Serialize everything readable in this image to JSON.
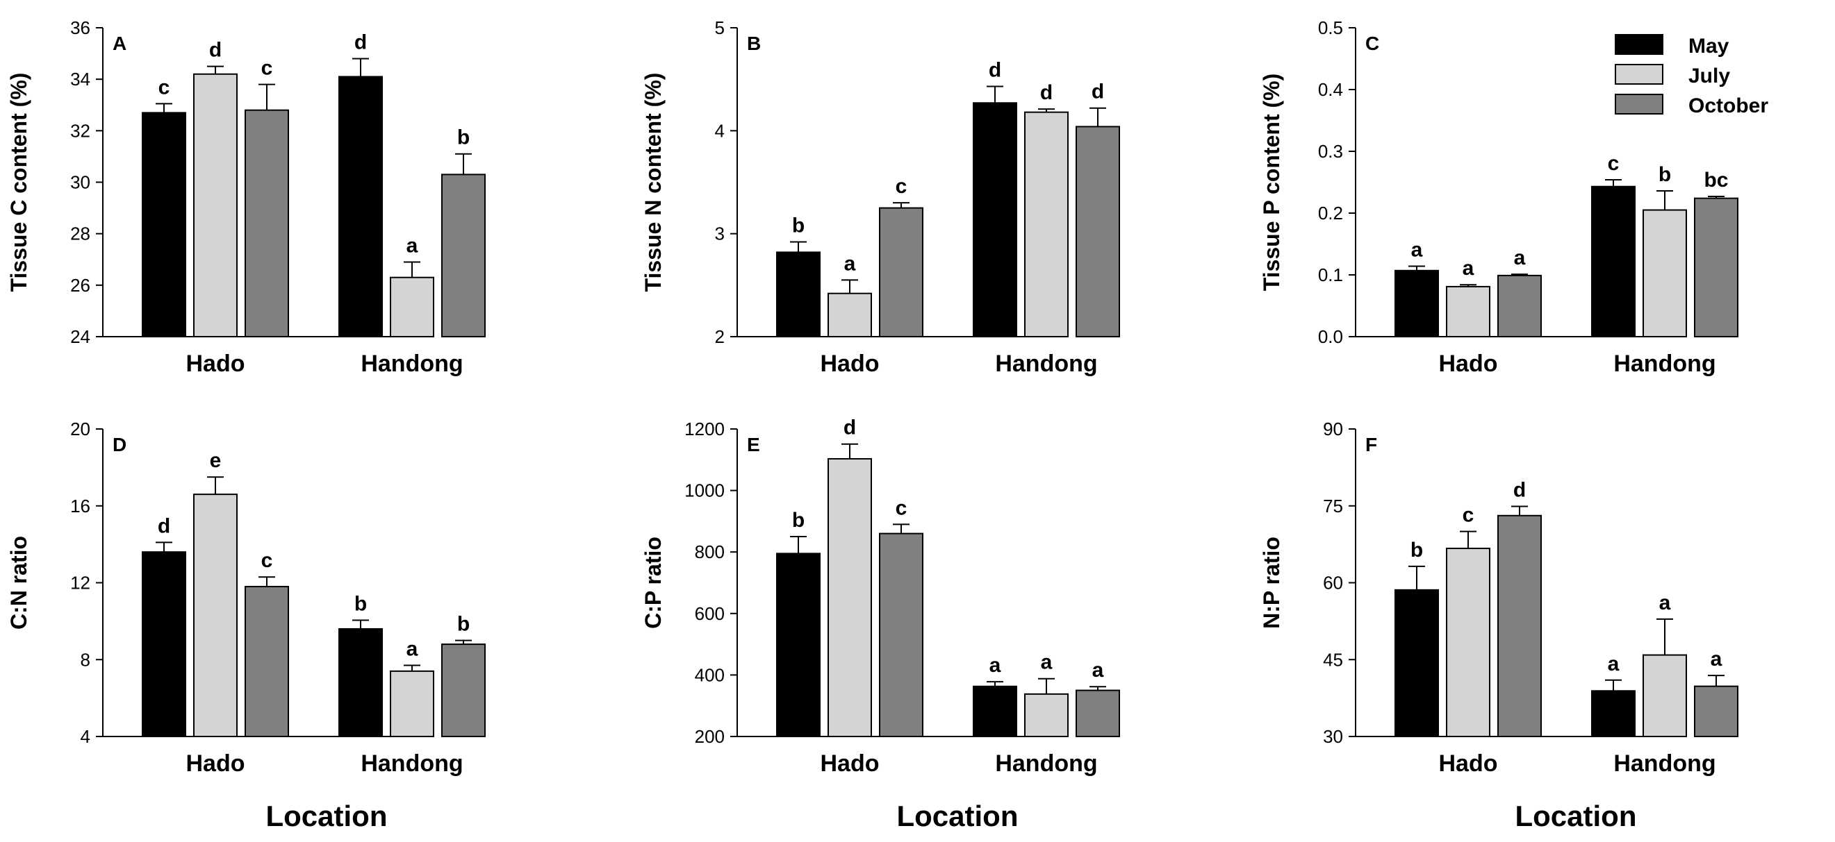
{
  "figure": {
    "x_title": "Location",
    "legend": [
      {
        "name": "May",
        "color": "#000000"
      },
      {
        "name": "July",
        "color": "#d4d4d4"
      },
      {
        "name": "October",
        "color": "#808080"
      }
    ]
  },
  "chart_data": [
    {
      "type": "bar",
      "panel": "A",
      "ylabel": "Tissue C content (%)",
      "categories": [
        "Hado",
        "Handong"
      ],
      "ylim": [
        24,
        36
      ],
      "yticks": [
        24,
        26,
        28,
        30,
        32,
        34,
        36
      ],
      "tick_decimals": 0,
      "series": [
        {
          "name": "May",
          "values": [
            32.7,
            34.1
          ],
          "errors": [
            0.35,
            0.7
          ],
          "letters": [
            "c",
            "d"
          ]
        },
        {
          "name": "July",
          "values": [
            34.2,
            26.3
          ],
          "errors": [
            0.3,
            0.6
          ],
          "letters": [
            "d",
            "a"
          ]
        },
        {
          "name": "October",
          "values": [
            32.8,
            30.3
          ],
          "errors": [
            1.0,
            0.8
          ],
          "letters": [
            "c",
            "b"
          ]
        }
      ]
    },
    {
      "type": "bar",
      "panel": "B",
      "ylabel": "Tissue N content (%)",
      "categories": [
        "Hado",
        "Handong"
      ],
      "ylim": [
        2,
        5
      ],
      "yticks": [
        2,
        3,
        4,
        5
      ],
      "tick_decimals": 0,
      "series": [
        {
          "name": "May",
          "values": [
            2.82,
            4.27
          ],
          "errors": [
            0.1,
            0.16
          ],
          "letters": [
            "b",
            "d"
          ]
        },
        {
          "name": "July",
          "values": [
            2.42,
            4.18
          ],
          "errors": [
            0.13,
            0.03
          ],
          "letters": [
            "a",
            "d"
          ]
        },
        {
          "name": "October",
          "values": [
            3.25,
            4.04
          ],
          "errors": [
            0.05,
            0.18
          ],
          "letters": [
            "c",
            "d"
          ]
        }
      ]
    },
    {
      "type": "bar",
      "panel": "C",
      "ylabel": "Tissue P content (%)",
      "categories": [
        "Hado",
        "Handong"
      ],
      "ylim": [
        0,
        0.5
      ],
      "yticks": [
        0,
        0.1,
        0.2,
        0.3,
        0.4,
        0.5
      ],
      "tick_decimals": 1,
      "series": [
        {
          "name": "May",
          "values": [
            0.107,
            0.243
          ],
          "errors": [
            0.007,
            0.011
          ],
          "letters": [
            "a",
            "c"
          ]
        },
        {
          "name": "July",
          "values": [
            0.081,
            0.205
          ],
          "errors": [
            0.003,
            0.031
          ],
          "letters": [
            "a",
            "b"
          ]
        },
        {
          "name": "October",
          "values": [
            0.099,
            0.224
          ],
          "errors": [
            0.002,
            0.003
          ],
          "letters": [
            "a",
            "bc"
          ]
        }
      ]
    },
    {
      "type": "bar",
      "panel": "D",
      "ylabel": "C:N ratio",
      "categories": [
        "Hado",
        "Handong"
      ],
      "ylim": [
        4,
        20
      ],
      "yticks": [
        4,
        8,
        12,
        16,
        20
      ],
      "tick_decimals": 0,
      "series": [
        {
          "name": "May",
          "values": [
            13.6,
            9.6
          ],
          "errors": [
            0.5,
            0.45
          ],
          "letters": [
            "d",
            "b"
          ]
        },
        {
          "name": "July",
          "values": [
            16.6,
            7.4
          ],
          "errors": [
            0.9,
            0.3
          ],
          "letters": [
            "e",
            "a"
          ]
        },
        {
          "name": "October",
          "values": [
            11.8,
            8.8
          ],
          "errors": [
            0.5,
            0.2
          ],
          "letters": [
            "c",
            "b"
          ]
        }
      ]
    },
    {
      "type": "bar",
      "panel": "E",
      "ylabel": "C:P ratio",
      "categories": [
        "Hado",
        "Handong"
      ],
      "ylim": [
        200,
        1200
      ],
      "yticks": [
        200,
        400,
        600,
        800,
        1000,
        1200
      ],
      "tick_decimals": 0,
      "series": [
        {
          "name": "May",
          "values": [
            795,
            363
          ],
          "errors": [
            55,
            15
          ],
          "letters": [
            "b",
            "a"
          ]
        },
        {
          "name": "July",
          "values": [
            1103,
            338
          ],
          "errors": [
            48,
            50
          ],
          "letters": [
            "d",
            "a"
          ]
        },
        {
          "name": "October",
          "values": [
            860,
            350
          ],
          "errors": [
            30,
            12
          ],
          "letters": [
            "c",
            "a"
          ]
        }
      ]
    },
    {
      "type": "bar",
      "panel": "F",
      "ylabel": "N:P ratio",
      "categories": [
        "Hado",
        "Handong"
      ],
      "ylim": [
        30,
        90
      ],
      "yticks": [
        30,
        45,
        60,
        75,
        90
      ],
      "tick_decimals": 0,
      "series": [
        {
          "name": "May",
          "values": [
            58.6,
            38.9
          ],
          "errors": [
            4.6,
            2.1
          ],
          "letters": [
            "b",
            "a"
          ]
        },
        {
          "name": "July",
          "values": [
            66.7,
            45.9
          ],
          "errors": [
            3.3,
            7.0
          ],
          "letters": [
            "c",
            "a"
          ]
        },
        {
          "name": "October",
          "values": [
            73.1,
            39.8
          ],
          "errors": [
            1.8,
            2.1
          ],
          "letters": [
            "d",
            "a"
          ]
        }
      ]
    }
  ]
}
